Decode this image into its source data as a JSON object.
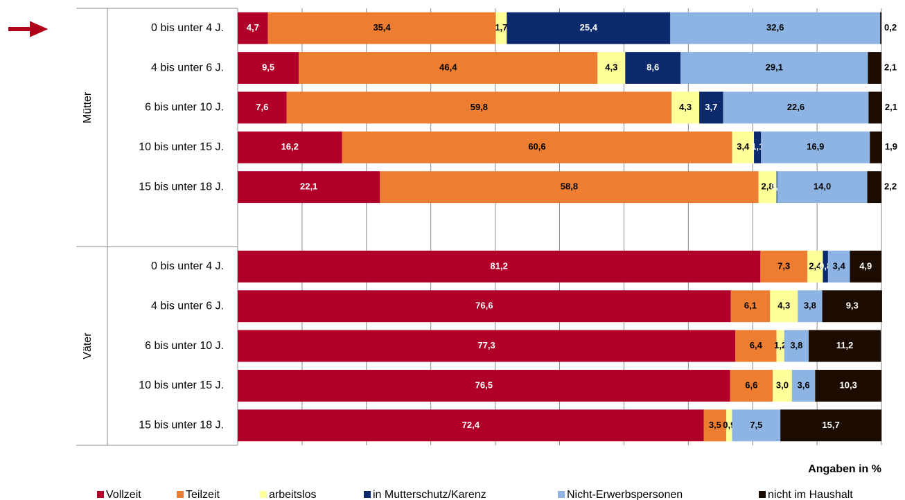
{
  "chart_data": {
    "type": "stacked_bar_horizontal",
    "groups": [
      {
        "name": "Mütter",
        "categories": [
          "0 bis unter 4 J.",
          "4 bis unter 6 J.",
          "6 bis unter 10 J.",
          "10 bis unter 15 J.",
          "15 bis unter 18 J."
        ]
      },
      {
        "name": "Väter",
        "categories": [
          "0 bis unter 4 J.",
          "4 bis unter 6 J.",
          "6 bis unter 10 J.",
          "10 bis unter 15 J.",
          "15 bis unter 18 J."
        ]
      }
    ],
    "series": [
      {
        "name": "Vollzeit",
        "color": "#b0002a",
        "values": [
          4.7,
          9.5,
          7.6,
          16.2,
          22.1,
          81.2,
          76.6,
          77.3,
          76.5,
          72.4
        ],
        "value_labels": [
          "4,7",
          "9,5",
          "7,6",
          "16,2",
          "22,1",
          "81,2",
          "76,6",
          "77,3",
          "76,5",
          "72,4"
        ]
      },
      {
        "name": "Teilzeit",
        "color": "#ed7d31",
        "values": [
          35.4,
          46.4,
          59.8,
          60.6,
          58.8,
          7.3,
          6.1,
          6.4,
          6.6,
          3.5
        ],
        "value_labels": [
          "35,4",
          "46,4",
          "59,8",
          "60,6",
          "58,8",
          "7,3",
          "6,1",
          "6,4",
          "6,6",
          "3,5"
        ]
      },
      {
        "name": "arbeitslos",
        "color": "#ffff99",
        "values": [
          1.7,
          4.3,
          4.3,
          3.4,
          2.8,
          2.4,
          4.3,
          1.2,
          3.0,
          0.9
        ],
        "value_labels": [
          "1,7",
          "4,3",
          "4,3",
          "3,4",
          "2,8",
          "2,4",
          "4,3",
          "1,2",
          "3,0",
          "0,9"
        ]
      },
      {
        "name": "in Mutterschutz/Karenz",
        "color": "#0b2a6e",
        "values": [
          25.4,
          8.6,
          3.7,
          1.1,
          0.1,
          0.8,
          null,
          null,
          null,
          null
        ],
        "value_labels": [
          "25,4",
          "8,6",
          "3,7",
          "1,1",
          "0,1",
          "0,8",
          null,
          null,
          null,
          null
        ]
      },
      {
        "name": "Nicht-Erwerbspersonen",
        "color": "#8db4e2",
        "values": [
          32.6,
          29.1,
          22.6,
          16.9,
          14.0,
          3.4,
          3.8,
          3.8,
          3.6,
          7.5
        ],
        "value_labels": [
          "32,6",
          "29,1",
          "22,6",
          "16,9",
          "14,0",
          "3,4",
          "3,8",
          "3,8",
          "3,6",
          "7,5"
        ]
      },
      {
        "name": "nicht im Haushalt",
        "color": "#1c0c00",
        "values": [
          0.2,
          2.1,
          2.1,
          1.9,
          2.2,
          4.9,
          9.3,
          11.2,
          10.3,
          15.7
        ],
        "value_labels": [
          "0,2",
          "2,1",
          "2,1",
          "1,9",
          "2,2",
          "4,9",
          "9,3",
          "11,2",
          "10,3",
          "15,7"
        ]
      }
    ],
    "xlim": [
      0,
      100
    ],
    "xticks": [
      0,
      10,
      20,
      30,
      40,
      50,
      60,
      70,
      80,
      90,
      100
    ],
    "grid": true,
    "annotation": "Angaben in %"
  }
}
